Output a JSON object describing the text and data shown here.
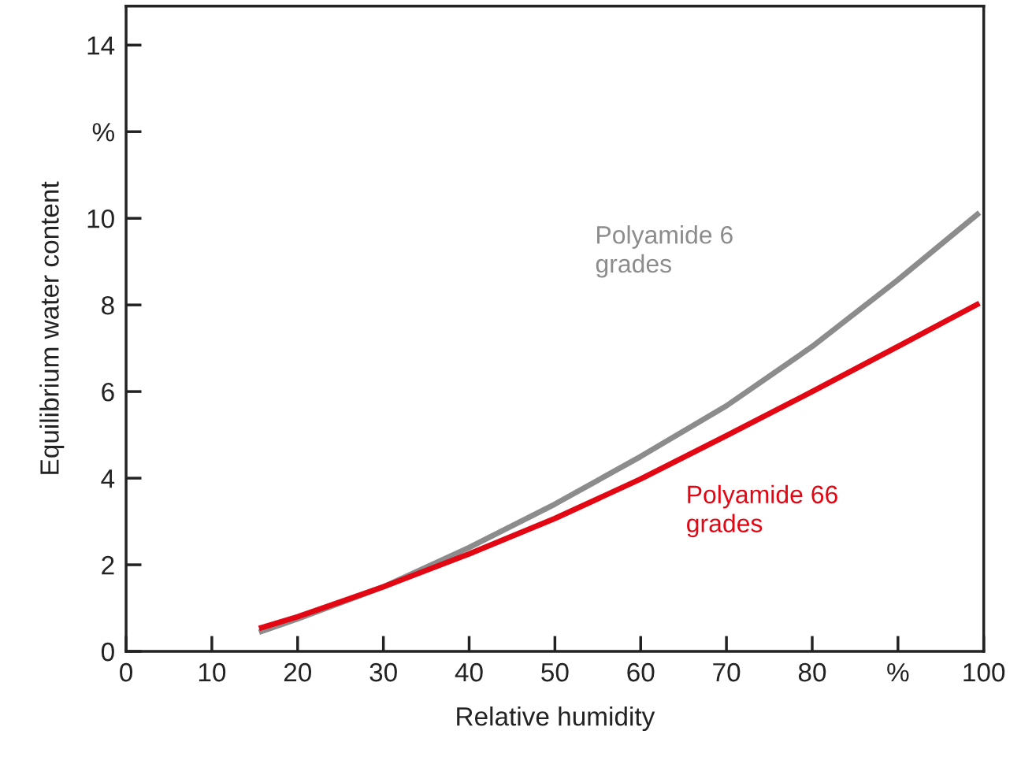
{
  "chart_data": {
    "type": "line",
    "xlabel": "Relative humidity",
    "ylabel": "Equilibrium water content",
    "xlim": [
      0,
      100
    ],
    "ylim": [
      0,
      14.9
    ],
    "xticks": [
      0,
      10,
      20,
      30,
      40,
      50,
      60,
      70,
      80,
      {
        "value": 90,
        "label": "%"
      },
      100
    ],
    "yticks": [
      0,
      2,
      4,
      6,
      8,
      10,
      {
        "value": 12,
        "label": "%"
      },
      14
    ],
    "grid": false,
    "legend": false,
    "marker": "none",
    "line_style": "solid",
    "x": [
      15.5,
      20,
      30,
      40,
      50,
      60,
      70,
      80,
      90,
      99.5
    ],
    "series": [
      {
        "name": "Polyamide 6\ngrades",
        "color": "#8c8c8c",
        "values": [
          0.44,
          0.75,
          1.49,
          2.4,
          3.4,
          4.5,
          5.67,
          7.04,
          8.58,
          10.13
        ]
      },
      {
        "name": "Polyamide 66\ngrades",
        "color": "#e30613",
        "values": [
          0.53,
          0.8,
          1.49,
          2.25,
          3.07,
          3.98,
          4.98,
          6.0,
          7.04,
          8.04
        ]
      }
    ]
  }
}
